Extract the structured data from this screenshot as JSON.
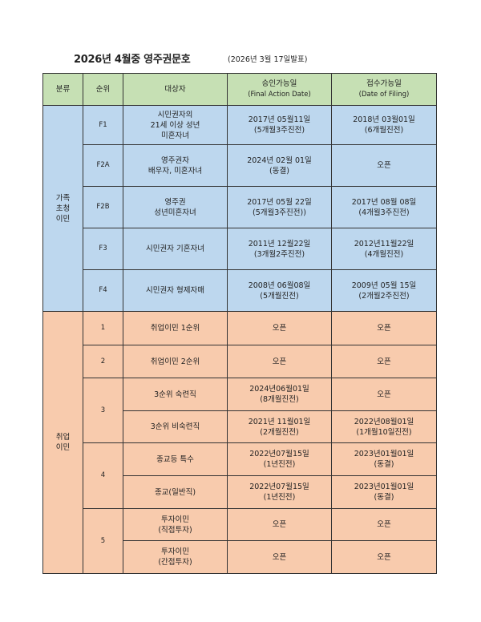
{
  "title": "2026년 4월중 영주권문호",
  "subtitle": "(2026년 3월 17일발표)",
  "colors": {
    "header": "#c6e0b4",
    "family": "#bdd7ee",
    "employment": "#f8cbad"
  },
  "headers": {
    "category": "분류",
    "rank": "순위",
    "target": "대상자",
    "final_action": "승인가능일",
    "final_action_en": "(Final Action Date)",
    "filing": "접수가능일",
    "filing_en": "(Date of Filing)"
  },
  "sections": [
    {
      "category": "가족\n초청\n이민",
      "color": "blue",
      "ranks": [
        {
          "rank": "F1",
          "rows": [
            {
              "target": "시민권자의\n21세 이상 성년\n미혼자녀",
              "final_action": "2017년 05월11일\n(5개월3주진전)",
              "filing": "2018년 03월01일\n(6개월진전)"
            }
          ]
        },
        {
          "rank": "F2A",
          "rows": [
            {
              "target": "영주권자\n배우자, 미혼자녀",
              "final_action": "2024년 02월 01일\n(동결)",
              "filing": "오픈"
            }
          ]
        },
        {
          "rank": "F2B",
          "rows": [
            {
              "target": "영주권\n성년미혼자녀",
              "final_action": "2017년 05월 22일\n(5개월3주진전))",
              "filing": "2017년 08월 08일\n(4개월3주진전)"
            }
          ]
        },
        {
          "rank": "F3",
          "rows": [
            {
              "target": "시민권자 기혼자녀",
              "final_action": "2011년 12월22일\n(3개월2주진전)",
              "filing": "2012년11월22일\n(4개월진전)"
            }
          ]
        },
        {
          "rank": "F4",
          "rows": [
            {
              "target": "시민권자 형제자매",
              "final_action": "2008년 06월08일\n(5개월진전)",
              "filing": "2009년 05월 15일\n(2개월2주진전)"
            }
          ]
        }
      ]
    },
    {
      "category": "취업\n이민",
      "color": "orange",
      "ranks": [
        {
          "rank": "1",
          "rows": [
            {
              "target": "취업이민 1순위",
              "final_action": "오픈",
              "filing": "오픈"
            }
          ]
        },
        {
          "rank": "2",
          "rows": [
            {
              "target": "취업이민 2순위",
              "final_action": "오픈",
              "filing": "오픈"
            }
          ]
        },
        {
          "rank": "3",
          "rows": [
            {
              "target": "3순위 숙련직",
              "final_action": "2024년06월01일\n(8개월진전)",
              "filing": "오픈"
            },
            {
              "target": "3순위 비숙련직",
              "final_action": "2021년 11월01일\n(2개월진전)",
              "filing": "2022년08월01일\n(1개월10일진전)"
            }
          ]
        },
        {
          "rank": "4",
          "rows": [
            {
              "target": "종교등 특수",
              "final_action": "2022년07월15일\n(1년진전)",
              "filing": "2023년01월01일\n(동결)"
            },
            {
              "target": "종교(일반직)",
              "final_action": "2022년07월15일\n(1년진전)",
              "filing": "2023년01월01일\n(동결)"
            }
          ]
        },
        {
          "rank": "5",
          "rows": [
            {
              "target": "투자이민\n(직접투자)",
              "final_action": "오픈",
              "filing": "오픈"
            },
            {
              "target": "투자이민\n(간접투자)",
              "final_action": "오픈",
              "filing": "오픈"
            }
          ]
        }
      ]
    }
  ]
}
